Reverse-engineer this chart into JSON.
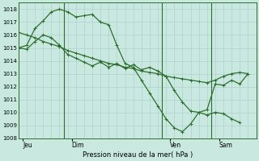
{
  "background_color": "#c8e8e0",
  "grid_color": "#b0d0cc",
  "line_color": "#2d6e2d",
  "ylabel": "Pression niveau de la mer( hPa )",
  "ylim": [
    1008,
    1018.5
  ],
  "ylim_display": [
    1008,
    1018
  ],
  "yticks": [
    1008,
    1009,
    1010,
    1011,
    1012,
    1013,
    1014,
    1015,
    1016,
    1017,
    1018
  ],
  "xtick_labels": [
    "Jeu",
    "Dim",
    "Ven",
    "Sam"
  ],
  "xtick_positions": [
    0.5,
    6.5,
    18.5,
    24.5
  ],
  "vline_positions": [
    5.5,
    17.5,
    23.5
  ],
  "xlim": [
    0,
    29
  ],
  "series1_x": [
    0,
    1,
    2,
    3,
    4,
    5,
    6,
    7,
    8,
    9,
    10,
    11,
    12,
    13,
    14,
    15,
    16,
    17,
    18,
    19,
    20,
    21,
    22,
    23,
    24,
    25,
    26,
    27,
    28
  ],
  "series1_y": [
    1016.2,
    1016.0,
    1015.8,
    1015.5,
    1015.3,
    1015.1,
    1014.8,
    1014.6,
    1014.4,
    1014.2,
    1014.0,
    1013.8,
    1013.7,
    1013.5,
    1013.4,
    1013.2,
    1013.1,
    1013.0,
    1012.8,
    1012.7,
    1012.6,
    1012.5,
    1012.4,
    1012.3,
    1012.5,
    1012.8,
    1013.0,
    1013.1,
    1013.0
  ],
  "series2_x": [
    0,
    1,
    2,
    3,
    4,
    5,
    6,
    7,
    8,
    9,
    10,
    11,
    12,
    13,
    14,
    15,
    16,
    17,
    18,
    19,
    20,
    21,
    22,
    23,
    24,
    25,
    26,
    27
  ],
  "series2_y": [
    1015.0,
    1015.2,
    1016.5,
    1017.1,
    1017.8,
    1018.0,
    1017.8,
    1017.4,
    1017.5,
    1017.6,
    1017.0,
    1016.8,
    1015.2,
    1013.8,
    1013.5,
    1012.5,
    1011.5,
    1010.5,
    1009.5,
    1008.8,
    1008.5,
    1009.1,
    1010.0,
    1009.8,
    1010.0,
    1009.9,
    1009.5,
    1009.2
  ],
  "series3_x": [
    0,
    1,
    2,
    3,
    4,
    5,
    6,
    7,
    8,
    9,
    10,
    11,
    12,
    13,
    14,
    15,
    16,
    17,
    18,
    19,
    20,
    21,
    22,
    23,
    24,
    25,
    26,
    27,
    28
  ],
  "series3_y": [
    1015.0,
    1014.9,
    1015.5,
    1016.0,
    1015.8,
    1015.2,
    1014.5,
    1014.2,
    1013.9,
    1013.6,
    1013.9,
    1013.5,
    1013.8,
    1013.4,
    1013.7,
    1013.3,
    1013.5,
    1013.2,
    1012.8,
    1011.7,
    1010.8,
    1010.1,
    1010.0,
    1010.2,
    1012.2,
    1012.1,
    1012.5,
    1012.2,
    1013.0
  ]
}
